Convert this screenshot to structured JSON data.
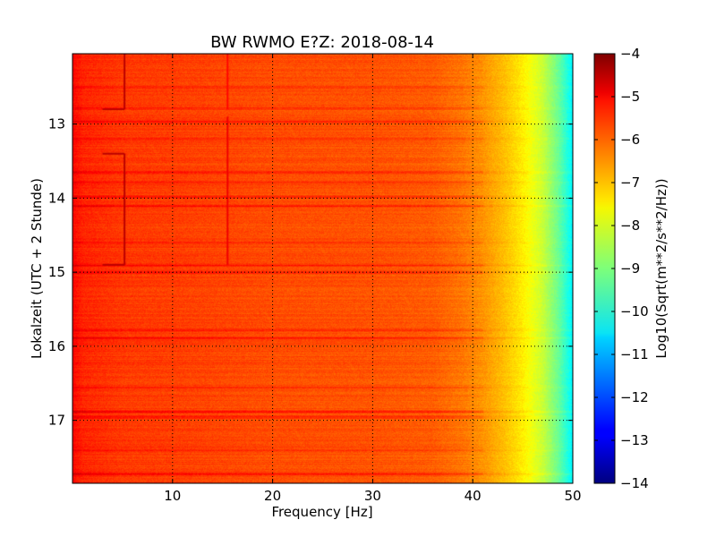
{
  "chart_data": {
    "type": "heatmap",
    "title": "BW RWMO E?Z: 2018-08-14",
    "xlabel": "Frequency [Hz]",
    "ylabel": "Lokalzeit (UTC + 2 Stunde)",
    "xlim": [
      0,
      50
    ],
    "ylim": [
      12.05,
      17.85
    ],
    "y_inverted": true,
    "x_ticks": [
      10,
      20,
      30,
      40,
      50
    ],
    "x_tick_labels": [
      "10",
      "20",
      "30",
      "40",
      "50"
    ],
    "y_ticks": [
      13,
      14,
      15,
      16,
      17
    ],
    "y_tick_labels": [
      "13",
      "14",
      "15",
      "16",
      "17"
    ],
    "grid": true,
    "colormap": "jet",
    "colorbar": {
      "label": "Log10(Sqrt(m**2/s**2/Hz))",
      "range": [
        -14,
        -4
      ],
      "ticks": [
        -4,
        -5,
        -6,
        -7,
        -8,
        -9,
        -10,
        -11,
        -12,
        -13,
        -14
      ],
      "tick_labels": [
        "−4",
        "−5",
        "−6",
        "−7",
        "−8",
        "−9",
        "−10",
        "−11",
        "−12",
        "−13",
        "−14"
      ]
    },
    "frequency_profile": [
      {
        "freq": 0,
        "value": -5.3
      },
      {
        "freq": 1,
        "value": -5.6
      },
      {
        "freq": 5,
        "value": -5.8
      },
      {
        "freq": 10,
        "value": -5.85
      },
      {
        "freq": 20,
        "value": -6.0
      },
      {
        "freq": 30,
        "value": -6.05
      },
      {
        "freq": 36,
        "value": -6.15
      },
      {
        "freq": 39,
        "value": -6.4
      },
      {
        "freq": 41,
        "value": -6.7
      },
      {
        "freq": 43,
        "value": -7.1
      },
      {
        "freq": 45,
        "value": -7.6
      },
      {
        "freq": 47,
        "value": -8.3
      },
      {
        "freq": 48.5,
        "value": -9.2
      },
      {
        "freq": 49.5,
        "value": -10.0
      },
      {
        "freq": 50,
        "value": -10.4
      }
    ],
    "time_bands": [
      {
        "time": 12.5,
        "value_offset": 0.25
      },
      {
        "time": 12.78,
        "value_offset": 0.45
      },
      {
        "time": 12.96,
        "value_offset": 0.55
      },
      {
        "time": 13.2,
        "value_offset": 0.3
      },
      {
        "time": 13.65,
        "value_offset": 0.5
      },
      {
        "time": 13.78,
        "value_offset": 0.45
      },
      {
        "time": 13.98,
        "value_offset": 0.6
      },
      {
        "time": 14.1,
        "value_offset": 0.55
      },
      {
        "time": 14.6,
        "value_offset": 0.35
      },
      {
        "time": 14.9,
        "value_offset": 0.5
      },
      {
        "time": 15.0,
        "value_offset": 0.45
      },
      {
        "time": 15.78,
        "value_offset": 0.55
      },
      {
        "time": 15.88,
        "value_offset": 0.5
      },
      {
        "time": 16.55,
        "value_offset": 0.3
      },
      {
        "time": 16.88,
        "value_offset": 0.6
      },
      {
        "time": 16.95,
        "value_offset": 0.45
      },
      {
        "time": 17.4,
        "value_offset": 0.3
      },
      {
        "time": 17.72,
        "value_offset": 0.55
      }
    ],
    "markers": [
      {
        "type": "vertical_line",
        "freq": 5.2,
        "time_start": 12.05,
        "time_end": 12.8,
        "value": -4.6
      },
      {
        "type": "vertical_line",
        "freq": 5.2,
        "time_start": 13.4,
        "time_end": 14.9,
        "value": -4.6
      },
      {
        "type": "horizontal_line",
        "freq_start": 3.0,
        "freq_end": 5.2,
        "time": 12.8,
        "value": -4.6
      },
      {
        "type": "horizontal_line",
        "freq_start": 3.0,
        "freq_end": 5.2,
        "time": 13.4,
        "value": -4.6
      },
      {
        "type": "horizontal_line",
        "freq_start": 3.0,
        "freq_end": 5.2,
        "time": 14.9,
        "value": -4.6
      },
      {
        "type": "vertical_line",
        "freq": 15.5,
        "time_start": 12.9,
        "time_end": 14.9,
        "value": -5.1
      },
      {
        "type": "vertical_line",
        "freq": 15.5,
        "time_start": 12.05,
        "time_end": 12.8,
        "value": -5.3
      }
    ]
  }
}
